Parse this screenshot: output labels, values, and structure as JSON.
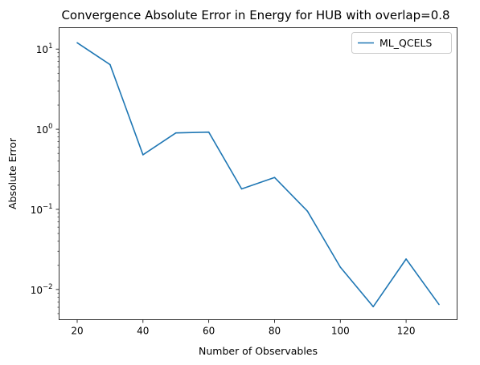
{
  "chart_data": {
    "type": "line",
    "title": "Convergence Absolute Error in Energy for HUB with overlap=0.8",
    "xlabel": "Number of Observables",
    "ylabel": "Absolute Error",
    "yscale": "log",
    "xlim": [
      14.5,
      135.5
    ],
    "ylim": [
      0.0042,
      18.5
    ],
    "xticks": [
      20,
      40,
      60,
      80,
      100,
      120
    ],
    "yticks": [
      {
        "value": 10,
        "base": "10",
        "exp": "1"
      },
      {
        "value": 1,
        "base": "10",
        "exp": "0"
      },
      {
        "value": 0.1,
        "base": "10",
        "exp": "−1"
      },
      {
        "value": 0.01,
        "base": "10",
        "exp": "−2"
      }
    ],
    "legend_position": "top-right",
    "grid": false,
    "series": [
      {
        "name": "ML_QCELS",
        "color": "#1f77b4",
        "x": [
          20,
          30,
          40,
          50,
          60,
          70,
          80,
          90,
          100,
          110,
          120,
          130
        ],
        "y": [
          12.0,
          6.4,
          0.48,
          0.9,
          0.92,
          0.18,
          0.25,
          0.095,
          0.019,
          0.0061,
          0.024,
          0.0065
        ]
      }
    ]
  }
}
